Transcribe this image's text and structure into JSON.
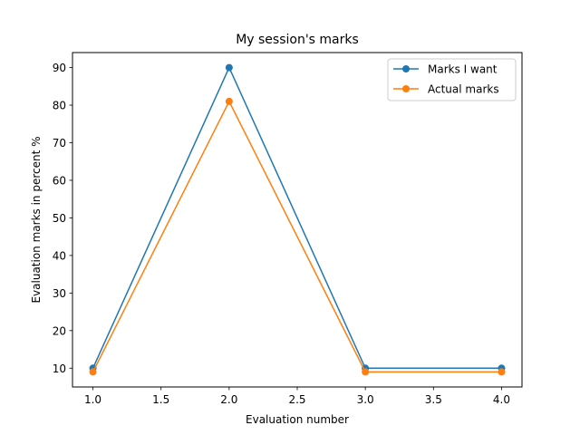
{
  "chart_data": {
    "type": "line",
    "title": "My session's marks",
    "xlabel": "Evaluation number",
    "ylabel": "Evaluation marks in percent %",
    "x": [
      1.0,
      2.0,
      3.0,
      4.0
    ],
    "xlim": [
      0.85,
      4.15
    ],
    "ylim": [
      5,
      94
    ],
    "xticks": [
      1.0,
      1.5,
      2.0,
      2.5,
      3.0,
      3.5,
      4.0
    ],
    "xtick_labels": [
      "1.0",
      "1.5",
      "2.0",
      "2.5",
      "3.0",
      "3.5",
      "4.0"
    ],
    "yticks": [
      10,
      20,
      30,
      40,
      50,
      60,
      70,
      80,
      90
    ],
    "ytick_labels": [
      "10",
      "20",
      "30",
      "40",
      "50",
      "60",
      "70",
      "80",
      "90"
    ],
    "grid": false,
    "legend_position": "top-right",
    "series": [
      {
        "name": "Marks I want",
        "color": "#1f77b4",
        "marker": "circle",
        "values": [
          10,
          90,
          10,
          10
        ]
      },
      {
        "name": "Actual marks",
        "color": "#ff7f0e",
        "marker": "circle",
        "values": [
          9,
          81,
          9,
          9
        ]
      }
    ]
  }
}
